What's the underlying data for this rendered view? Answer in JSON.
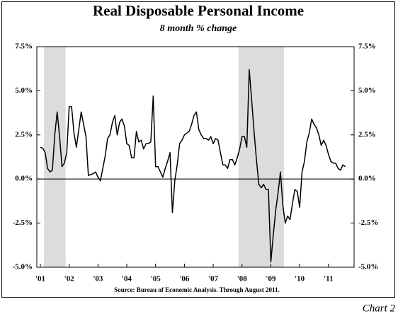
{
  "chart_data": {
    "type": "line",
    "title": "Real Disposable Personal Income",
    "subtitle": "8 month % change",
    "source": "Source: Bureau of Economic Analysis. Through August 2011.",
    "chart_label": "Chart 2",
    "color": "#000000",
    "shade_color": "#dcdcdc",
    "shaded_periods": [
      [
        2,
        10
      ],
      [
        83,
        101
      ]
    ],
    "categories": [
      "'01",
      null,
      null,
      null,
      null,
      null,
      null,
      null,
      null,
      null,
      null,
      null,
      "'02",
      null,
      null,
      null,
      null,
      null,
      null,
      null,
      null,
      null,
      null,
      null,
      "'03",
      null,
      null,
      null,
      null,
      null,
      null,
      null,
      null,
      null,
      null,
      null,
      "'04",
      null,
      null,
      null,
      null,
      null,
      null,
      null,
      null,
      null,
      null,
      null,
      "'05",
      null,
      null,
      null,
      null,
      null,
      null,
      null,
      null,
      null,
      null,
      null,
      "'06",
      null,
      null,
      null,
      null,
      null,
      null,
      null,
      null,
      null,
      null,
      null,
      "'07",
      null,
      null,
      null,
      null,
      null,
      null,
      null,
      null,
      null,
      null,
      null,
      "'08",
      null,
      null,
      null,
      null,
      null,
      null,
      null,
      null,
      null,
      null,
      null,
      "'09",
      null,
      null,
      null,
      null,
      null,
      null,
      null,
      null,
      null,
      null,
      null,
      "'10",
      null,
      null,
      null,
      null,
      null,
      null,
      null,
      null,
      null,
      null,
      null,
      "'11",
      null,
      null,
      null,
      null,
      null,
      null,
      null
    ],
    "values": [
      1.8,
      1.75,
      1.5,
      0.6,
      0.4,
      0.5,
      2.5,
      3.8,
      2.4,
      0.7,
      0.9,
      1.5,
      4.1,
      4.1,
      2.6,
      1.8,
      2.8,
      3.8,
      3.1,
      2.4,
      0.2,
      0.25,
      0.3,
      0.4,
      0.1,
      -0.1,
      0.6,
      1.3,
      2.3,
      2.5,
      3.2,
      3.6,
      2.5,
      3.2,
      3.4,
      3.0,
      2.0,
      1.9,
      1.2,
      1.2,
      2.7,
      2.1,
      2.2,
      1.7,
      2.0,
      2.0,
      2.1,
      4.7,
      0.7,
      0.7,
      0.4,
      0.1,
      0.6,
      1.0,
      1.5,
      -1.9,
      -0.1,
      0.8,
      2.0,
      2.2,
      2.5,
      2.6,
      2.7,
      3.1,
      3.6,
      3.8,
      2.8,
      2.5,
      2.3,
      2.3,
      2.2,
      2.4,
      2.0,
      2.3,
      2.2,
      1.5,
      0.8,
      0.8,
      0.6,
      1.1,
      1.1,
      0.8,
      1.2,
      1.7,
      2.4,
      2.4,
      1.8,
      6.2,
      4.5,
      2.7,
      1.1,
      -0.3,
      -0.5,
      -0.3,
      -0.6,
      -0.6,
      -4.7,
      -3.2,
      -1.8,
      -0.8,
      0.4,
      -1.5,
      -2.5,
      -2.1,
      -2.3,
      -1.4,
      -0.6,
      -0.7,
      -1.6,
      0.4,
      1.0,
      2.1,
      2.6,
      3.4,
      3.1,
      2.9,
      2.5,
      1.9,
      2.2,
      1.9,
      1.4,
      1.0,
      0.9,
      0.9,
      0.6,
      0.5,
      0.8,
      0.7
    ],
    "ylim": [
      -5,
      7.5
    ],
    "yticks": [
      {
        "value": -5,
        "label": "-5.0%"
      },
      {
        "value": -2.5,
        "label": "-2.5%"
      },
      {
        "value": 0,
        "label": "0.0%"
      },
      {
        "value": 2.5,
        "label": "2.5%"
      },
      {
        "value": 5,
        "label": "5.0%"
      },
      {
        "value": 7.5,
        "label": "7.5%"
      }
    ],
    "zero_line": true
  }
}
